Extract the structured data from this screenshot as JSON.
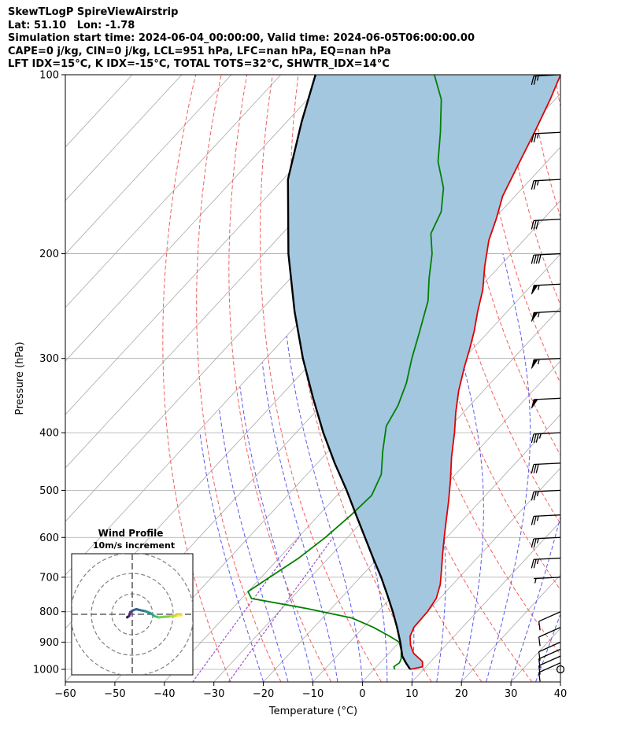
{
  "title_lines": [
    "SkewTLogP SpireViewAirstrip",
    "Lat: 51.10   Lon: -1.78",
    "Simulation start time: 2024-06-04_00:00:00, Valid time: 2024-06-05T06:00:00.00",
    "CAPE=0 j/kg, CIN=0 j/kg, LCL=951 hPa, LFC=nan hPa, EQ=nan hPa",
    "LFT IDX=15°C, K IDX=-15°C, TOTAL TOTS=32°C, SHWTR_IDX=14°C"
  ],
  "chart_data": {
    "type": "line",
    "subtype": "skew-T log-P diagram",
    "xlabel": "Temperature (°C)",
    "ylabel": "Pressure (hPa)",
    "xlim": [
      -60,
      40
    ],
    "ylim": [
      1050,
      100
    ],
    "y_scale": "log",
    "grid": true,
    "x_ticks": [
      "−60",
      "−50",
      "−40",
      "−30",
      "−20",
      "−10",
      "0",
      "10",
      "20",
      "30",
      "40"
    ],
    "x_tick_values": [
      -60,
      -50,
      -40,
      -30,
      -20,
      -10,
      0,
      10,
      20,
      30,
      40
    ],
    "y_ticks": [
      "100",
      "200",
      "300",
      "400",
      "500",
      "600",
      "700",
      "800",
      "900",
      "1000"
    ],
    "y_tick_values": [
      100,
      200,
      300,
      400,
      500,
      600,
      700,
      800,
      900,
      1000
    ],
    "series": [
      {
        "role": "temperature",
        "color": "#e00000",
        "points": [
          [
            1000,
            7.3
          ],
          [
            990,
            9.3
          ],
          [
            970,
            8.3
          ],
          [
            940,
            5.0
          ],
          [
            910,
            2.8
          ],
          [
            880,
            1.1
          ],
          [
            850,
            0.2
          ],
          [
            800,
            0.0
          ],
          [
            760,
            -0.7
          ],
          [
            720,
            -2.5
          ],
          [
            680,
            -5.0
          ],
          [
            640,
            -7.7
          ],
          [
            600,
            -10.5
          ],
          [
            560,
            -13.4
          ],
          [
            520,
            -16.5
          ],
          [
            480,
            -20.0
          ],
          [
            440,
            -24.0
          ],
          [
            400,
            -28.0
          ],
          [
            370,
            -31.5
          ],
          [
            340,
            -35.0
          ],
          [
            310,
            -38.3
          ],
          [
            290,
            -40.5
          ],
          [
            270,
            -43.0
          ],
          [
            250,
            -46.0
          ],
          [
            230,
            -49.0
          ],
          [
            210,
            -53.0
          ],
          [
            190,
            -57.0
          ],
          [
            175,
            -59.5
          ],
          [
            160,
            -62.5
          ],
          [
            140,
            -65.5
          ],
          [
            125,
            -68.0
          ],
          [
            110,
            -71.0
          ],
          [
            100,
            -73.5
          ]
        ]
      },
      {
        "role": "dewpoint",
        "color": "#008000",
        "points": [
          [
            1000,
            4.2
          ],
          [
            990,
            3.5
          ],
          [
            975,
            3.9
          ],
          [
            960,
            3.5
          ],
          [
            930,
            2.0
          ],
          [
            900,
            0.0
          ],
          [
            880,
            -3.0
          ],
          [
            850,
            -8.0
          ],
          [
            820,
            -14.0
          ],
          [
            790,
            -25.0
          ],
          [
            760,
            -38.0
          ],
          [
            740,
            -40.0
          ],
          [
            700,
            -38.3
          ],
          [
            650,
            -36.0
          ],
          [
            600,
            -34.5
          ],
          [
            550,
            -33.5
          ],
          [
            510,
            -33.0
          ],
          [
            470,
            -35.0
          ],
          [
            430,
            -39.0
          ],
          [
            390,
            -43.0
          ],
          [
            360,
            -44.5
          ],
          [
            330,
            -47.0
          ],
          [
            300,
            -50.5
          ],
          [
            270,
            -54.0
          ],
          [
            240,
            -58.0
          ],
          [
            220,
            -62.0
          ],
          [
            200,
            -66.0
          ],
          [
            185,
            -70.0
          ],
          [
            170,
            -72.0
          ],
          [
            155,
            -76.0
          ],
          [
            140,
            -82.0
          ],
          [
            125,
            -87.0
          ],
          [
            110,
            -93.0
          ],
          [
            100,
            -99.0
          ]
        ]
      },
      {
        "role": "parcel",
        "color": "#000000",
        "points": [
          [
            1000,
            7.3
          ],
          [
            975,
            5.2
          ],
          [
            951,
            3.3
          ],
          [
            900,
            0.2
          ],
          [
            850,
            -3.2
          ],
          [
            800,
            -7.0
          ],
          [
            750,
            -11.2
          ],
          [
            700,
            -15.8
          ],
          [
            650,
            -21.0
          ],
          [
            600,
            -26.5
          ],
          [
            550,
            -32.5
          ],
          [
            500,
            -39.0
          ],
          [
            450,
            -46.5
          ],
          [
            400,
            -54.5
          ],
          [
            350,
            -63.0
          ],
          [
            300,
            -72.5
          ],
          [
            250,
            -83.0
          ],
          [
            200,
            -95.0
          ],
          [
            150,
            -109.0
          ],
          [
            120,
            -117.0
          ],
          [
            100,
            -123.0
          ]
        ]
      }
    ],
    "shading": {
      "between": [
        "parcel",
        "temperature"
      ],
      "color": "#a4c7e0"
    },
    "reference_lines": {
      "isotherms_color": "#aaaaaa",
      "dry_adiabats_color": "#f06060",
      "moist_adiabats_color": "#5a5af0",
      "mixing_ratio_color": "#a050c8"
    },
    "wind_barbs": [
      {
        "pressure": 1000,
        "speed_kt": 0
      },
      {
        "pressure": 975,
        "speed_kt": 10
      },
      {
        "pressure": 950,
        "speed_kt": 10
      },
      {
        "pressure": 925,
        "speed_kt": 10
      },
      {
        "pressure": 900,
        "speed_kt": 10
      },
      {
        "pressure": 850,
        "speed_kt": 10
      },
      {
        "pressure": 800,
        "speed_kt": 10
      },
      {
        "pressure": 700,
        "speed_kt": 5
      },
      {
        "pressure": 650,
        "speed_kt": 25
      },
      {
        "pressure": 600,
        "speed_kt": 25
      },
      {
        "pressure": 550,
        "speed_kt": 25
      },
      {
        "pressure": 500,
        "speed_kt": 25
      },
      {
        "pressure": 450,
        "speed_kt": 30
      },
      {
        "pressure": 400,
        "speed_kt": 35
      },
      {
        "pressure": 350,
        "speed_kt": 50
      },
      {
        "pressure": 300,
        "speed_kt": 55
      },
      {
        "pressure": 250,
        "speed_kt": 55
      },
      {
        "pressure": 225,
        "speed_kt": 55
      },
      {
        "pressure": 200,
        "speed_kt": 40
      },
      {
        "pressure": 175,
        "speed_kt": 30
      },
      {
        "pressure": 150,
        "speed_kt": 25
      },
      {
        "pressure": 125,
        "speed_kt": 25
      },
      {
        "pressure": 100,
        "speed_kt": 25
      }
    ],
    "inset": {
      "title": "Wind Profile",
      "subtitle": "10m/s increment",
      "type": "hodograph",
      "rings_ms": [
        10,
        20,
        30
      ],
      "points_ms": [
        [
          -2.5,
          1.5
        ],
        [
          -1.5,
          0.8
        ],
        [
          -1.0,
          -1.0
        ],
        [
          0.5,
          -2.0
        ],
        [
          2.0,
          -2.5
        ],
        [
          4.0,
          -2.0
        ],
        [
          6.5,
          -1.5
        ],
        [
          9.0,
          -0.5
        ],
        [
          11.0,
          1.0
        ],
        [
          13.0,
          1.5
        ],
        [
          16.0,
          1.2
        ],
        [
          19.0,
          1.0
        ],
        [
          22.0,
          0.5
        ],
        [
          24.0,
          0.5
        ]
      ]
    }
  }
}
